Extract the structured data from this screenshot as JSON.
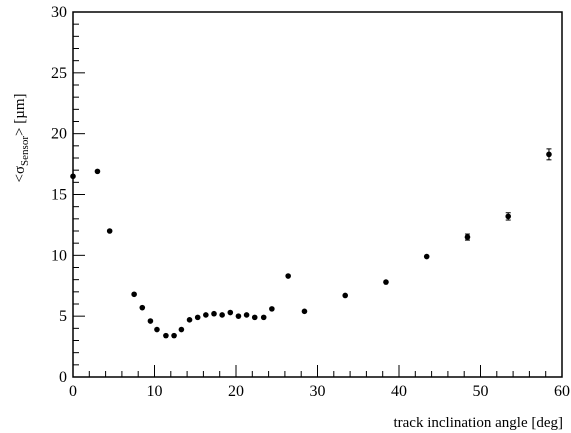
{
  "chart_data": {
    "type": "scatter",
    "title": "",
    "xlabel": "track inclination angle [deg]",
    "ylabel": {
      "prefix": "<σ",
      "subscript": "Sensor",
      "suffix": "> [µm]"
    },
    "xlim": [
      0,
      60
    ],
    "ylim": [
      0,
      30
    ],
    "xticks": [
      0,
      10,
      20,
      30,
      40,
      50,
      60
    ],
    "yticks": [
      0,
      5,
      10,
      15,
      20,
      25,
      30
    ],
    "xtick_labels": [
      "0",
      "10",
      "20",
      "30",
      "40",
      "50",
      "60"
    ],
    "ytick_labels": [
      "0",
      "5",
      "10",
      "15",
      "20",
      "25",
      "30"
    ],
    "grid": false,
    "colors": {
      "marker": "#000000",
      "frame": "#000000"
    },
    "series": [
      {
        "points": [
          {
            "x": 0.0,
            "y": 16.5
          },
          {
            "x": 3.0,
            "y": 16.9
          },
          {
            "x": 4.5,
            "y": 12.0
          },
          {
            "x": 7.5,
            "y": 6.8
          },
          {
            "x": 8.5,
            "y": 5.7
          },
          {
            "x": 9.5,
            "y": 4.6
          },
          {
            "x": 10.3,
            "y": 3.9
          },
          {
            "x": 11.4,
            "y": 3.4
          },
          {
            "x": 12.4,
            "y": 3.4
          },
          {
            "x": 13.3,
            "y": 3.9
          },
          {
            "x": 14.3,
            "y": 4.7
          },
          {
            "x": 15.3,
            "y": 4.9
          },
          {
            "x": 16.3,
            "y": 5.1
          },
          {
            "x": 17.3,
            "y": 5.2
          },
          {
            "x": 18.3,
            "y": 5.1
          },
          {
            "x": 19.3,
            "y": 5.3
          },
          {
            "x": 20.3,
            "y": 5.0
          },
          {
            "x": 21.3,
            "y": 5.1
          },
          {
            "x": 22.3,
            "y": 4.9
          },
          {
            "x": 23.4,
            "y": 4.9
          },
          {
            "x": 24.4,
            "y": 5.6
          },
          {
            "x": 26.4,
            "y": 8.3
          },
          {
            "x": 28.4,
            "y": 5.4
          },
          {
            "x": 33.4,
            "y": 6.7
          },
          {
            "x": 38.4,
            "y": 7.8
          },
          {
            "x": 43.4,
            "y": 9.9
          },
          {
            "x": 48.4,
            "y": 11.5,
            "err": 0.25
          },
          {
            "x": 53.4,
            "y": 13.2,
            "err": 0.3
          },
          {
            "x": 58.4,
            "y": 18.3,
            "err": 0.45
          }
        ]
      }
    ]
  }
}
